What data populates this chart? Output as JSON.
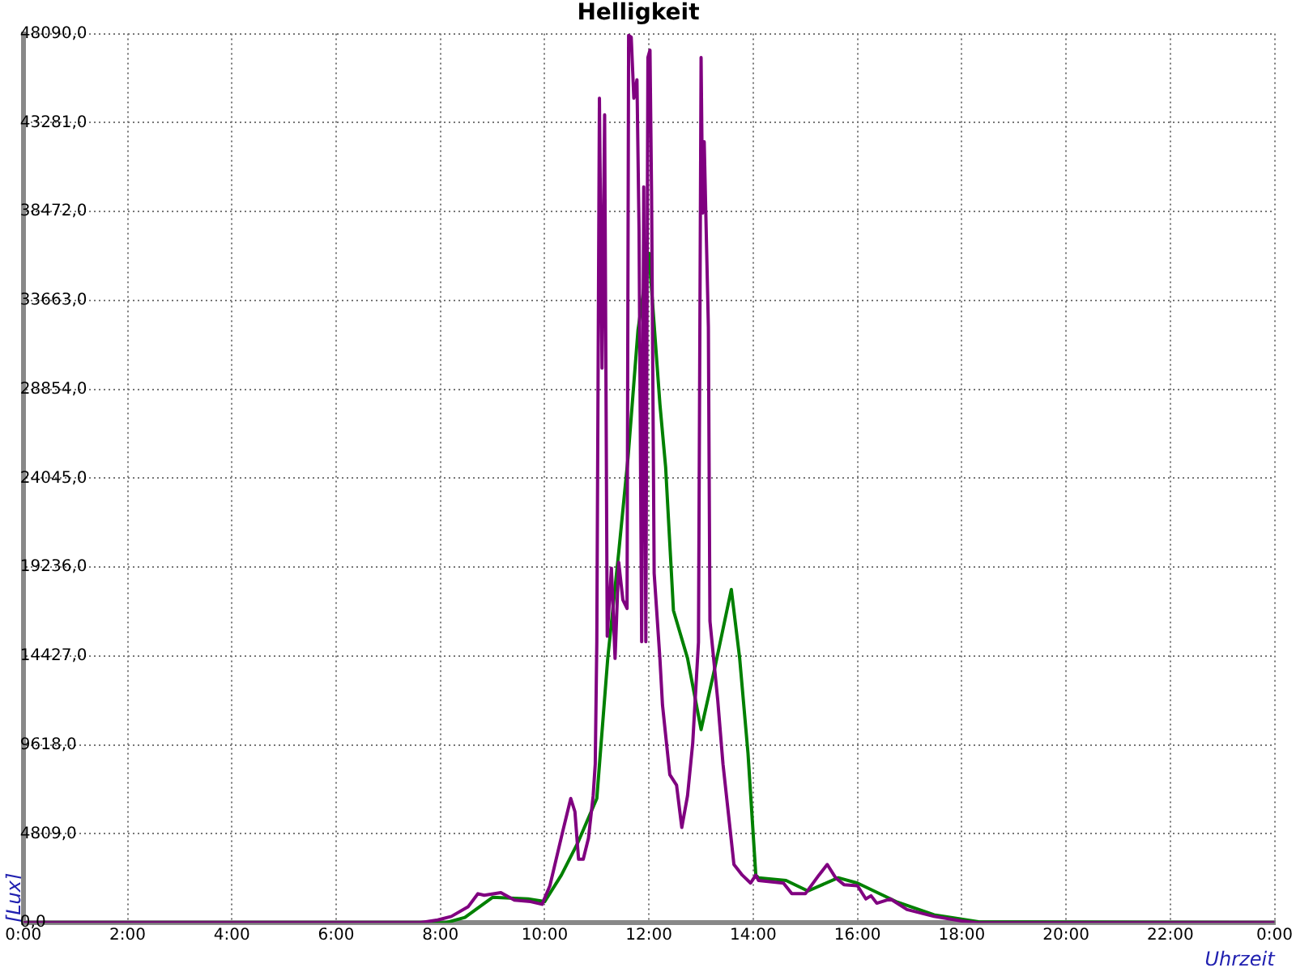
{
  "chart_data": {
    "type": "line",
    "title": "Helligkeit",
    "xlabel": "Uhrzeit",
    "ylabel": "[Lux]",
    "xlim": [
      0,
      24
    ],
    "ylim": [
      0,
      48090
    ],
    "xticks": [
      {
        "value": 0,
        "label": "0:00"
      },
      {
        "value": 2,
        "label": "2:00"
      },
      {
        "value": 4,
        "label": "4:00"
      },
      {
        "value": 6,
        "label": "6:00"
      },
      {
        "value": 8,
        "label": "8:00"
      },
      {
        "value": 10,
        "label": "10:00"
      },
      {
        "value": 12,
        "label": "12:00"
      },
      {
        "value": 14,
        "label": "14:00"
      },
      {
        "value": 16,
        "label": "16:00"
      },
      {
        "value": 18,
        "label": "18:00"
      },
      {
        "value": 20,
        "label": "20:00"
      },
      {
        "value": 22,
        "label": "22:00"
      },
      {
        "value": 24,
        "label": "0:00"
      }
    ],
    "yticks": [
      {
        "value": 0,
        "label": "0,0"
      },
      {
        "value": 4809,
        "label": "4809,0"
      },
      {
        "value": 9618,
        "label": "9618,0"
      },
      {
        "value": 14427,
        "label": "14427,0"
      },
      {
        "value": 19236,
        "label": "19236,0"
      },
      {
        "value": 24045,
        "label": "24045,0"
      },
      {
        "value": 28854,
        "label": "28854,0"
      },
      {
        "value": 33663,
        "label": "33663,0"
      },
      {
        "value": 38472,
        "label": "38472,0"
      },
      {
        "value": 43281,
        "label": "43281,0"
      },
      {
        "value": 48090,
        "label": "48090,0"
      }
    ],
    "grid": true,
    "series": [
      {
        "color": "#800080",
        "x": [
          0,
          7.6,
          7.95,
          8.21,
          8.53,
          8.72,
          8.84,
          9.16,
          9.42,
          9.73,
          9.95,
          10.1,
          10.34,
          10.5,
          10.58,
          10.65,
          10.74,
          10.84,
          10.93,
          10.97,
          11.0,
          11.05,
          11.1,
          11.15,
          11.2,
          11.28,
          11.35,
          11.42,
          11.5,
          11.58,
          11.61,
          11.66,
          11.71,
          11.77,
          11.81,
          11.86,
          11.9,
          11.94,
          11.98,
          12.02,
          12.05,
          12.1,
          12.21,
          12.26,
          12.4,
          12.53,
          12.63,
          12.74,
          12.84,
          12.95,
          13.0,
          13.03,
          13.06,
          13.14,
          13.17,
          13.32,
          13.42,
          13.53,
          13.63,
          13.79,
          13.95,
          14.05,
          14.1,
          14.58,
          14.74,
          15.0,
          15.26,
          15.42,
          15.58,
          15.74,
          16.0,
          16.16,
          16.26,
          16.37,
          16.63,
          16.95,
          17.47,
          18.0,
          18.3,
          24
        ],
        "values": [
          0,
          0,
          150,
          343,
          859,
          1572,
          1486,
          1632,
          1229,
          1143,
          1000,
          2004,
          4867,
          6723,
          6011,
          3435,
          3435,
          4580,
          6870,
          8588,
          15200,
          44600,
          30000,
          43700,
          15500,
          19180,
          14300,
          19500,
          17460,
          17000,
          48000,
          47900,
          44600,
          45600,
          37500,
          15200,
          39800,
          15200,
          46800,
          47200,
          39500,
          18900,
          14300,
          11770,
          8010,
          7440,
          5153,
          6870,
          9730,
          15170,
          46800,
          38390,
          42240,
          32200,
          16320,
          12020,
          8590,
          5750,
          3150,
          2576,
          2147,
          2576,
          2290,
          2147,
          1572,
          1572,
          2576,
          3150,
          2433,
          2061,
          2000,
          1288,
          1460,
          1056,
          1288,
          713,
          343,
          100,
          0,
          0
        ]
      },
      {
        "color": "#008000",
        "x": [
          0,
          7.7,
          8.1,
          8.47,
          9.0,
          9.68,
          10.0,
          10.32,
          10.63,
          11.0,
          11.21,
          11.42,
          11.6,
          11.79,
          12.0,
          12.21,
          12.32,
          12.47,
          12.74,
          13.0,
          13.26,
          13.58,
          13.74,
          13.9,
          14.05,
          14.1,
          14.63,
          15.05,
          15.63,
          16.0,
          16.74,
          17.47,
          18.32,
          24
        ],
        "values": [
          0,
          0,
          0,
          286,
          1374,
          1288,
          1145,
          2576,
          4294,
          6723,
          14310,
          20030,
          25190,
          32060,
          36210,
          28060,
          24650,
          16890,
          14310,
          10450,
          13740,
          18030,
          14310,
          9160,
          2576,
          2433,
          2290,
          1717,
          2433,
          2147,
          1145,
          429,
          50,
          0
        ]
      }
    ]
  }
}
